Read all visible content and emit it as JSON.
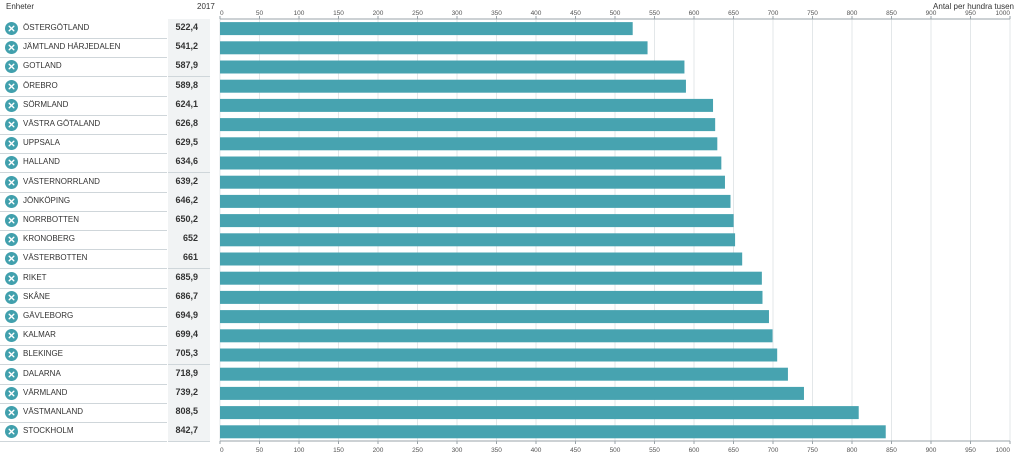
{
  "table": {
    "units_header": "Enheter",
    "year_header": "2017",
    "remove_icon": "close-circle-icon"
  },
  "chart_data": {
    "type": "bar",
    "orientation": "horizontal",
    "xlabel": "Antal per hundra tusen",
    "xlim": [
      0,
      1000
    ],
    "xticks": [
      "0",
      "50",
      "100",
      "150",
      "200",
      "250",
      "300",
      "350",
      "400",
      "450",
      "500",
      "550",
      "600",
      "650",
      "700",
      "750",
      "800",
      "850",
      "900",
      "950",
      "1000"
    ],
    "ticks_position": "top-and-bottom",
    "grid": true,
    "bar_color": "#47a3b0",
    "categories": [
      "ÖSTERGÖTLAND",
      "JÄMTLAND HÄRJEDALEN",
      "GOTLAND",
      "ÖREBRO",
      "SÖRMLAND",
      "VÄSTRA GÖTALAND",
      "UPPSALA",
      "HALLAND",
      "VÄSTERNORRLAND",
      "JÖNKÖPING",
      "NORRBOTTEN",
      "KRONOBERG",
      "VÄSTERBOTTEN",
      "RIKET",
      "SKÅNE",
      "GÄVLEBORG",
      "KALMAR",
      "BLEKINGE",
      "DALARNA",
      "VÄRMLAND",
      "VÄSTMANLAND",
      "STOCKHOLM"
    ],
    "values": [
      522.4,
      541.2,
      587.9,
      589.8,
      624.1,
      626.8,
      629.5,
      634.6,
      639.2,
      646.2,
      650.2,
      652,
      661,
      685.9,
      686.7,
      694.9,
      699.4,
      705.3,
      718.9,
      739.2,
      808.5,
      842.7
    ],
    "value_labels": [
      "522,4",
      "541,2",
      "587,9",
      "589,8",
      "624,1",
      "626,8",
      "629,5",
      "634,6",
      "639,2",
      "646,2",
      "650,2",
      "652",
      "661",
      "685,9",
      "686,7",
      "694,9",
      "699,4",
      "705,3",
      "718,9",
      "739,2",
      "808,5",
      "842,7"
    ]
  }
}
